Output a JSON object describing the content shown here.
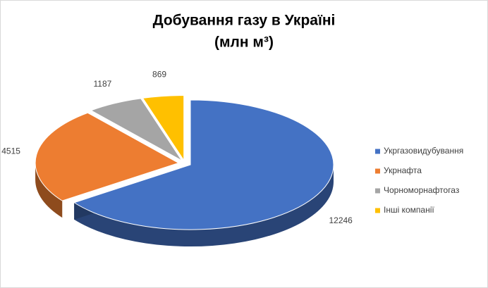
{
  "chart_data": {
    "type": "pie",
    "title": "Добування газу в Україні",
    "subtitle": "(млн м³)",
    "categories": [
      "Укргазовидубування",
      "Укрнафта",
      "Чорноморнафтогаз",
      "Інші компанії"
    ],
    "values": [
      12246,
      4515,
      1187,
      869
    ],
    "colors": [
      "#4472c4",
      "#ed7d31",
      "#a5a5a5",
      "#ffc000"
    ],
    "legend": "right"
  }
}
